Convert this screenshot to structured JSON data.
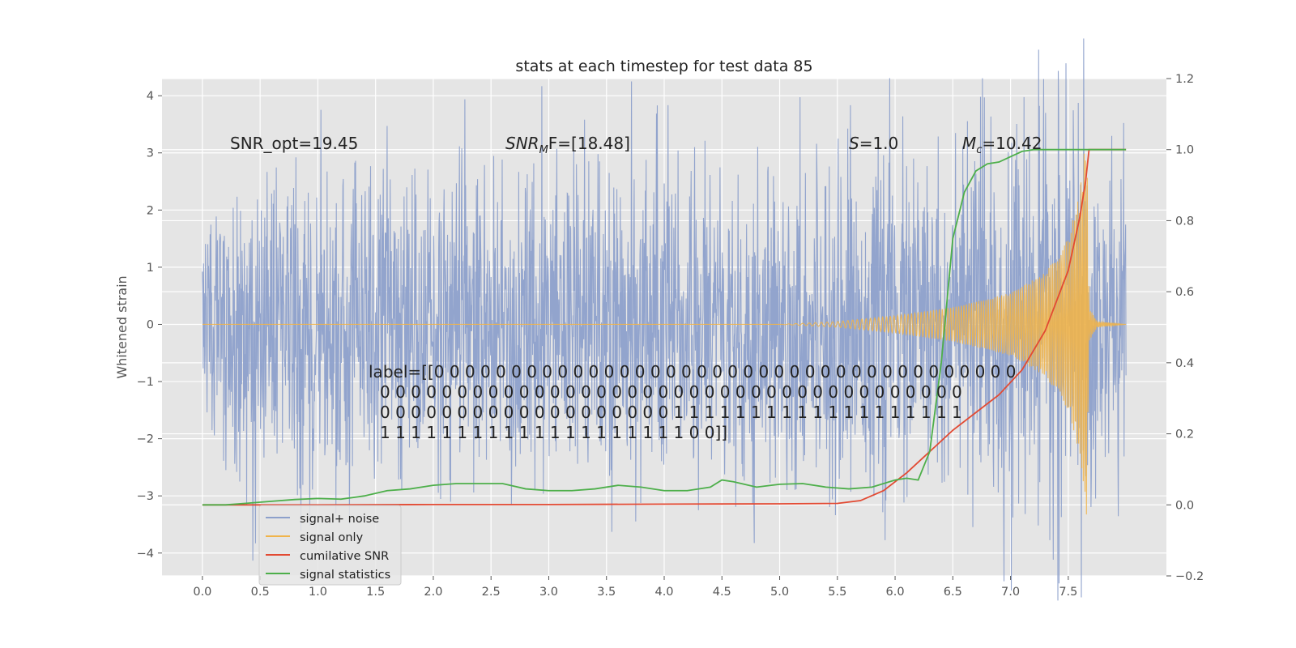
{
  "chart_data": {
    "type": "line",
    "title": "stats at each timestep for test data 85",
    "ylabel": "Whitened strain",
    "xlim": [
      -0.35,
      8.35
    ],
    "ylim": [
      -4.4,
      4.3
    ],
    "y2lim": [
      -0.2,
      1.2
    ],
    "x_ticks": [
      "0.0",
      "0.5",
      "1.0",
      "1.5",
      "2.0",
      "2.5",
      "3.0",
      "3.5",
      "4.0",
      "4.5",
      "5.0",
      "5.5",
      "6.0",
      "6.5",
      "7.0",
      "7.5"
    ],
    "y_ticks": [
      "4",
      "3",
      "2",
      "1",
      "0",
      "−1",
      "−2",
      "−3",
      "−4"
    ],
    "y2_ticks": [
      "1.2",
      "1.0",
      "0.8",
      "0.6",
      "0.4",
      "0.2",
      "0.0",
      "−0.2"
    ],
    "grid": true,
    "legend_position": "lower-left",
    "annotations": {
      "snr_opt": "SNR_opt=19.45",
      "snr_mf_prefix": "SNR",
      "snr_mf_sub": "M",
      "snr_mf_suffix": "F=[18.48]",
      "s_italic": "S",
      "s_value": "=1.0",
      "mc_italic": "M",
      "mc_sub": "c",
      "mc_value": "=10.42",
      "label_lines": [
        "label=[[0 0 0 0 0 0 0 0 0 0 0 0 0 0 0 0 0 0 0 0 0 0 0 0 0 0 0 0 0 0 0 0 0 0 0 0 0 0",
        "0 0 0 0 0 0 0 0 0 0 0 0 0 0 0 0 0 0 0 0 0 0 0 0 0 0 0 0 0 0 0 0 0 0 0 0 0 0",
        "0 0 0 0 0 0 0 0 0 0 0 0 0 0 0 0 0 0 0 1 1 1 1 1 1 1 1 1 1 1 1 1 1 1 1 1 1 1",
        "1 1 1 1 1 1 1 1 1 1 1 1 1 1 1 1 1 1 1 1 0 0]]"
      ]
    },
    "series": [
      {
        "name": "signal+ noise",
        "color": "#8da0cb",
        "axis": "left",
        "t_range": [
          0.0,
          8.0
        ],
        "envelope": {
          "t": [
            0.0,
            1.0,
            2.0,
            3.0,
            4.0,
            5.0,
            6.0,
            6.5,
            7.0,
            7.5,
            7.6,
            7.7,
            8.0
          ],
          "amplitude": [
            2.3,
            2.6,
            2.6,
            2.5,
            2.5,
            2.5,
            2.6,
            2.7,
            2.9,
            3.3,
            3.6,
            2.6,
            2.3
          ]
        }
      },
      {
        "name": "signal only",
        "color": "#f0b44b",
        "axis": "left",
        "t_range": [
          0.0,
          8.0
        ],
        "envelope": {
          "t": [
            0.0,
            5.0,
            5.5,
            6.0,
            6.5,
            7.0,
            7.3,
            7.5,
            7.6,
            7.66,
            7.68,
            7.75,
            8.0
          ],
          "amplitude": [
            0.0,
            0.0,
            0.05,
            0.15,
            0.3,
            0.55,
            0.9,
            1.5,
            2.3,
            3.4,
            0.3,
            0.05,
            0.0
          ]
        }
      },
      {
        "name": "cumilative SNR",
        "color": "#e24a33",
        "axis": "right",
        "x": [
          0.0,
          1.0,
          2.0,
          3.0,
          4.0,
          5.0,
          5.5,
          5.7,
          5.9,
          6.1,
          6.3,
          6.5,
          6.7,
          6.9,
          7.1,
          7.3,
          7.5,
          7.6,
          7.65,
          7.68,
          8.0
        ],
        "y": [
          0.0,
          0.0,
          0.001,
          0.001,
          0.002,
          0.003,
          0.004,
          0.012,
          0.04,
          0.09,
          0.15,
          0.21,
          0.26,
          0.31,
          0.38,
          0.49,
          0.66,
          0.81,
          0.91,
          1.0,
          1.0
        ]
      },
      {
        "name": "signal statistics",
        "color": "#4daf4a",
        "axis": "right",
        "x": [
          0.0,
          0.2,
          0.4,
          0.6,
          0.8,
          1.0,
          1.2,
          1.4,
          1.6,
          1.8,
          2.0,
          2.2,
          2.4,
          2.6,
          2.8,
          3.0,
          3.2,
          3.4,
          3.6,
          3.8,
          4.0,
          4.2,
          4.4,
          4.5,
          4.6,
          4.8,
          5.0,
          5.2,
          5.4,
          5.6,
          5.8,
          6.0,
          6.1,
          6.2,
          6.3,
          6.4,
          6.5,
          6.6,
          6.7,
          6.8,
          6.9,
          7.0,
          7.1,
          7.2,
          7.4,
          7.6,
          8.0
        ],
        "y": [
          0.0,
          0.0,
          0.005,
          0.01,
          0.015,
          0.018,
          0.016,
          0.025,
          0.04,
          0.045,
          0.055,
          0.06,
          0.06,
          0.06,
          0.045,
          0.04,
          0.04,
          0.045,
          0.055,
          0.05,
          0.04,
          0.04,
          0.05,
          0.07,
          0.065,
          0.05,
          0.058,
          0.06,
          0.05,
          0.045,
          0.05,
          0.07,
          0.075,
          0.07,
          0.15,
          0.4,
          0.75,
          0.88,
          0.94,
          0.96,
          0.965,
          0.98,
          0.995,
          1.0,
          1.0,
          1.0,
          1.0
        ]
      }
    ]
  }
}
